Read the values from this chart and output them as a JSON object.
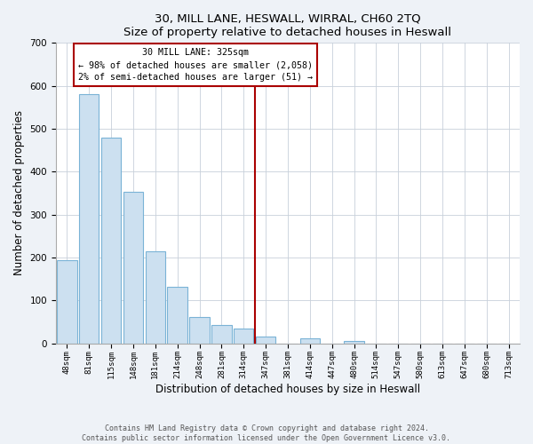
{
  "title": "30, MILL LANE, HESWALL, WIRRAL, CH60 2TQ",
  "subtitle": "Size of property relative to detached houses in Heswall",
  "xlabel": "Distribution of detached houses by size in Heswall",
  "ylabel": "Number of detached properties",
  "bar_labels": [
    "48sqm",
    "81sqm",
    "115sqm",
    "148sqm",
    "181sqm",
    "214sqm",
    "248sqm",
    "281sqm",
    "314sqm",
    "347sqm",
    "381sqm",
    "414sqm",
    "447sqm",
    "480sqm",
    "514sqm",
    "547sqm",
    "580sqm",
    "613sqm",
    "647sqm",
    "680sqm",
    "713sqm"
  ],
  "bar_values": [
    193,
    580,
    480,
    353,
    215,
    132,
    62,
    42,
    35,
    16,
    0,
    11,
    0,
    5,
    0,
    0,
    0,
    0,
    0,
    0,
    0
  ],
  "bar_color": "#cce0f0",
  "bar_edge_color": "#7ab3d6",
  "annotation_text_line1": "30 MILL LANE: 325sqm",
  "annotation_text_line2": "← 98% of detached houses are smaller (2,058)",
  "annotation_text_line3": "2% of semi-detached houses are larger (51) →",
  "annotation_box_color": "#ffffff",
  "annotation_box_edge": "#aa0000",
  "vline_color": "#aa0000",
  "ylim": [
    0,
    700
  ],
  "yticks": [
    0,
    100,
    200,
    300,
    400,
    500,
    600,
    700
  ],
  "footer_line1": "Contains HM Land Registry data © Crown copyright and database right 2024.",
  "footer_line2": "Contains public sector information licensed under the Open Government Licence v3.0.",
  "bg_color": "#eef2f7",
  "plot_bg_color": "#ffffff",
  "grid_color": "#c8d0da"
}
